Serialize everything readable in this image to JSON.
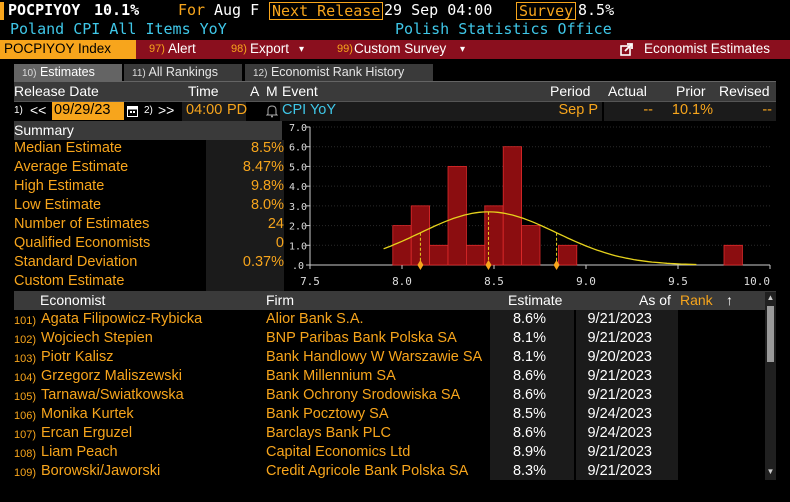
{
  "header": {
    "ticker": "POCPIYOY",
    "value": "10.1%",
    "for_label": "For",
    "for_value": "Aug F",
    "next_release_label": "Next Release",
    "next_release_value": "29 Sep 04:00",
    "survey_label": "Survey",
    "survey_value": "8.5%",
    "description": "Poland CPI All Items YoY",
    "source": "Polish Statistics Office"
  },
  "toolbar": {
    "index_label": "POCPIYOY Index",
    "alert_num": "97)",
    "alert_label": "Alert",
    "export_num": "98)",
    "export_label": "Export",
    "custom_num": "99)",
    "custom_label": "Custom Survey",
    "economist_label": "Economist Estimates",
    "chevron": "▾"
  },
  "tabs": [
    {
      "num": "10)",
      "label": "Estimates"
    },
    {
      "num": "11)",
      "label": "All Rankings"
    },
    {
      "num": "12)",
      "label": "Economist Rank History"
    }
  ],
  "release_header": {
    "release_date": "Release Date",
    "time": "Time",
    "a": "A",
    "m": "M",
    "event": "Event",
    "period": "Period",
    "actual": "Actual",
    "prior": "Prior",
    "revised": "Revised"
  },
  "release_row": {
    "prev_num": "1)",
    "prev_arrow": "<<",
    "date": "09/29/23",
    "next_num": "2)",
    "next_arrow": ">>",
    "time": "04:00",
    "tz": "PD",
    "event": "CPI YoY",
    "period": "Sep P",
    "actual": "--",
    "prior": "10.1%",
    "revised": "--"
  },
  "summary": {
    "title": "Summary",
    "rows": [
      {
        "label": "Median Estimate",
        "value": "8.5%"
      },
      {
        "label": "Average Estimate",
        "value": "8.47%"
      },
      {
        "label": "High Estimate",
        "value": "9.8%"
      },
      {
        "label": "Low Estimate",
        "value": "8.0%"
      },
      {
        "label": "Number of Estimates",
        "value": "24"
      },
      {
        "label": "Qualified Economists",
        "value": "0"
      },
      {
        "label": "Standard Deviation",
        "value": "0.37%"
      },
      {
        "label": "Custom Estimate",
        "value": ""
      }
    ]
  },
  "chart_data": {
    "type": "bar",
    "title": "",
    "xlabel": "",
    "ylabel": "",
    "xlim": [
      7.5,
      10.0
    ],
    "ylim": [
      0,
      7.0
    ],
    "xticks": [
      "7.5",
      "8.0",
      "8.5",
      "9.0",
      "9.5",
      "10.0"
    ],
    "yticks": [
      "7.0",
      "6.0",
      "5.0",
      "4.0",
      "3.0",
      "2.0",
      "1.0",
      ".0"
    ],
    "bins": [
      {
        "x": 8.0,
        "count": 2
      },
      {
        "x": 8.1,
        "count": 3
      },
      {
        "x": 8.2,
        "count": 1
      },
      {
        "x": 8.3,
        "count": 5
      },
      {
        "x": 8.4,
        "count": 1
      },
      {
        "x": 8.5,
        "count": 3
      },
      {
        "x": 8.6,
        "count": 6
      },
      {
        "x": 8.7,
        "count": 2
      },
      {
        "x": 8.9,
        "count": 1
      },
      {
        "x": 9.8,
        "count": 1
      }
    ],
    "mean": 8.47,
    "std": 0.37,
    "markers": [
      8.1,
      8.47,
      8.84
    ],
    "colors": {
      "bar": "#8b0d10",
      "bar_edge": "#e02b2b",
      "curve": "#e6d21c",
      "marker": "#f7a51c"
    }
  },
  "table_header": {
    "economist": "Economist",
    "firm": "Firm",
    "estimate": "Estimate",
    "as_of": "As of",
    "rank": "Rank",
    "sort_icon": "↑"
  },
  "economists": [
    {
      "idx": "101)",
      "name": "Agata Filipowicz-Rybicka",
      "firm": "Alior Bank S.A.",
      "estimate": "8.6%",
      "as_of": "9/21/2023"
    },
    {
      "idx": "102)",
      "name": "Wojciech Stepien",
      "firm": "BNP Paribas Bank Polska SA",
      "estimate": "8.1%",
      "as_of": "9/21/2023"
    },
    {
      "idx": "103)",
      "name": "Piotr Kalisz",
      "firm": "Bank Handlowy W Warszawie SA",
      "estimate": "8.1%",
      "as_of": "9/20/2023"
    },
    {
      "idx": "104)",
      "name": "Grzegorz Maliszewski",
      "firm": "Bank Millennium SA",
      "estimate": "8.6%",
      "as_of": "9/21/2023"
    },
    {
      "idx": "105)",
      "name": "Tarnawa/Swiatkowska",
      "firm": "Bank Ochrony Srodowiska SA",
      "estimate": "8.6%",
      "as_of": "9/21/2023"
    },
    {
      "idx": "106)",
      "name": "Monika Kurtek",
      "firm": "Bank Pocztowy SA",
      "estimate": "8.5%",
      "as_of": "9/24/2023"
    },
    {
      "idx": "107)",
      "name": "Ercan Erguzel",
      "firm": "Barclays Bank PLC",
      "estimate": "8.6%",
      "as_of": "9/24/2023"
    },
    {
      "idx": "108)",
      "name": "Liam Peach",
      "firm": "Capital Economics Ltd",
      "estimate": "8.9%",
      "as_of": "9/21/2023"
    },
    {
      "idx": "109)",
      "name": "Borowski/Jaworski",
      "firm": "Credit Agricole Bank Polska SA",
      "estimate": "8.3%",
      "as_of": "9/21/2023"
    }
  ]
}
